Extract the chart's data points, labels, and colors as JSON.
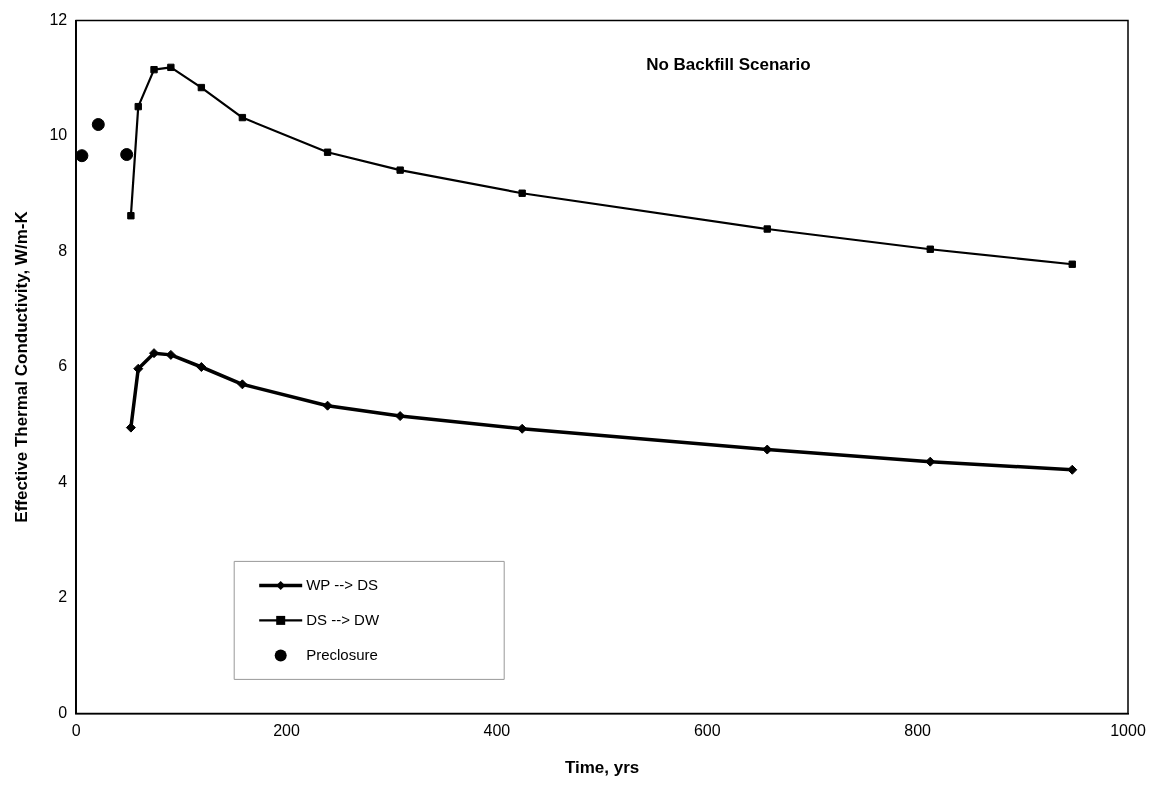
{
  "chart_data": {
    "type": "line",
    "xlabel": "Time, yrs",
    "ylabel": "Effective Thermal Conductivity, W/m-K",
    "annotations": [
      "No Backfill Scenario"
    ],
    "xlim": [
      0,
      1000
    ],
    "xticks": [
      0,
      200,
      400,
      600,
      800,
      1000
    ],
    "ylim": [
      0,
      12
    ],
    "yticks": [
      0,
      2,
      4,
      6,
      8,
      10,
      12
    ],
    "grid": false,
    "legend": "bottom left",
    "series": [
      {
        "name": "WP --> DS",
        "marker": "diamond",
        "color": "#000000",
        "x": [
          52,
          59,
          74,
          90,
          119,
          158,
          239,
          308,
          424,
          657,
          812,
          947
        ],
        "values": [
          4.95,
          5.97,
          6.24,
          6.21,
          6.0,
          5.7,
          5.33,
          5.15,
          4.93,
          4.57,
          4.36,
          4.22
        ]
      },
      {
        "name": "DS --> DW",
        "marker": "square",
        "color": "#000000",
        "x": [
          52,
          59,
          74,
          90,
          119,
          158,
          239,
          308,
          424,
          657,
          812,
          947
        ],
        "values": [
          8.62,
          10.51,
          11.15,
          11.19,
          10.84,
          10.32,
          9.72,
          9.41,
          9.01,
          8.39,
          8.04,
          7.78
        ]
      },
      {
        "name": "Preclosure",
        "type": "scatter",
        "marker": "circle",
        "color": "#000000",
        "x": [
          5.4,
          21,
          48
        ],
        "values": [
          9.66,
          10.2,
          9.68
        ]
      }
    ]
  }
}
